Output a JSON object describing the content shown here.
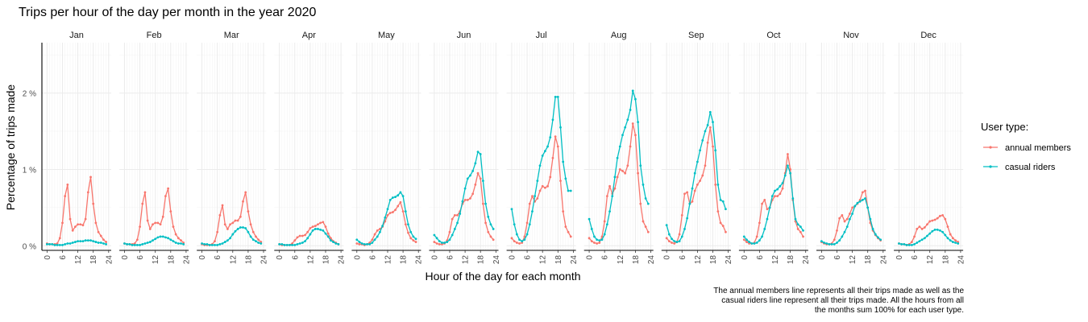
{
  "chart_data": {
    "type": "line",
    "title": "Trips per hour of the day per month in the year 2020",
    "xlabel": "Hour of the day for each month",
    "ylabel": "Percentage of trips made",
    "caption": [
      "The annual members line represents all their trips made as well as the",
      "casual riders line represent all their trips made. All the hours from all",
      "the months sum 100% for each user type."
    ],
    "facets": [
      "Jan",
      "Feb",
      "Mar",
      "Apr",
      "May",
      "Jun",
      "Jul",
      "Aug",
      "Sep",
      "Oct",
      "Nov",
      "Dec"
    ],
    "x": [
      0,
      1,
      2,
      3,
      4,
      5,
      6,
      7,
      8,
      9,
      10,
      11,
      12,
      13,
      14,
      15,
      16,
      17,
      18,
      19,
      20,
      21,
      22,
      23
    ],
    "xlim": [
      -2,
      25
    ],
    "xticks": [
      0,
      6,
      12,
      18,
      24
    ],
    "ylim": [
      -0.06,
      2.66
    ],
    "yticks": [
      0,
      1,
      2
    ],
    "ytick_labels": [
      "0 %",
      "1 %",
      "2 %"
    ],
    "grid": true,
    "legend": {
      "title": "User type:",
      "position": "right",
      "entries": [
        "annual members",
        "casual riders"
      ]
    },
    "series": [
      {
        "name": "annual members",
        "color": "#F8766D",
        "by_month": {
          "Jan": [
            0.03,
            0.02,
            0.02,
            0.02,
            0.03,
            0.1,
            0.3,
            0.65,
            0.8,
            0.35,
            0.2,
            0.25,
            0.28,
            0.28,
            0.27,
            0.35,
            0.7,
            0.9,
            0.55,
            0.3,
            0.18,
            0.13,
            0.08,
            0.05
          ],
          "Feb": [
            0.03,
            0.02,
            0.02,
            0.02,
            0.03,
            0.08,
            0.25,
            0.55,
            0.7,
            0.33,
            0.22,
            0.28,
            0.3,
            0.3,
            0.28,
            0.38,
            0.65,
            0.75,
            0.45,
            0.25,
            0.15,
            0.1,
            0.07,
            0.04
          ],
          "Mar": [
            0.02,
            0.01,
            0.01,
            0.01,
            0.02,
            0.06,
            0.18,
            0.4,
            0.53,
            0.28,
            0.22,
            0.28,
            0.3,
            0.33,
            0.33,
            0.38,
            0.58,
            0.7,
            0.45,
            0.28,
            0.18,
            0.12,
            0.08,
            0.05
          ],
          "Apr": [
            0.02,
            0.01,
            0.01,
            0.01,
            0.01,
            0.03,
            0.07,
            0.11,
            0.13,
            0.13,
            0.14,
            0.18,
            0.23,
            0.25,
            0.26,
            0.28,
            0.3,
            0.31,
            0.25,
            0.16,
            0.1,
            0.06,
            0.04,
            0.02
          ],
          "May": [
            0.03,
            0.02,
            0.02,
            0.01,
            0.02,
            0.04,
            0.08,
            0.15,
            0.2,
            0.22,
            0.25,
            0.32,
            0.4,
            0.43,
            0.44,
            0.47,
            0.52,
            0.57,
            0.45,
            0.28,
            0.17,
            0.1,
            0.07,
            0.05
          ],
          "Jun": [
            0.05,
            0.03,
            0.02,
            0.02,
            0.03,
            0.07,
            0.18,
            0.35,
            0.4,
            0.4,
            0.45,
            0.55,
            0.6,
            0.6,
            0.62,
            0.68,
            0.8,
            0.95,
            0.88,
            0.55,
            0.3,
            0.18,
            0.12,
            0.08
          ],
          "Jul": [
            0.1,
            0.06,
            0.04,
            0.03,
            0.04,
            0.12,
            0.3,
            0.55,
            0.65,
            0.58,
            0.62,
            0.72,
            0.78,
            0.76,
            0.78,
            0.9,
            1.15,
            1.43,
            1.3,
            0.85,
            0.45,
            0.25,
            0.18,
            0.12
          ],
          "Aug": [
            0.1,
            0.06,
            0.04,
            0.03,
            0.04,
            0.12,
            0.32,
            0.65,
            0.78,
            0.68,
            0.75,
            0.9,
            1.0,
            0.98,
            0.95,
            1.05,
            1.3,
            1.6,
            1.45,
            0.95,
            0.55,
            0.32,
            0.25,
            0.18
          ],
          "Sep": [
            0.1,
            0.06,
            0.04,
            0.03,
            0.05,
            0.15,
            0.4,
            0.68,
            0.7,
            0.55,
            0.58,
            0.72,
            0.8,
            0.85,
            0.92,
            1.05,
            1.35,
            1.55,
            1.3,
            0.8,
            0.45,
            0.3,
            0.26,
            0.18
          ],
          "Oct": [
            0.08,
            0.05,
            0.03,
            0.03,
            0.04,
            0.12,
            0.3,
            0.55,
            0.6,
            0.48,
            0.5,
            0.6,
            0.65,
            0.65,
            0.68,
            0.75,
            0.95,
            1.2,
            1.0,
            0.6,
            0.32,
            0.22,
            0.18,
            0.12
          ],
          "Nov": [
            0.05,
            0.03,
            0.02,
            0.02,
            0.03,
            0.08,
            0.2,
            0.36,
            0.4,
            0.32,
            0.35,
            0.42,
            0.5,
            0.52,
            0.55,
            0.6,
            0.7,
            0.72,
            0.5,
            0.3,
            0.2,
            0.14,
            0.1,
            0.07
          ],
          "Dec": [
            0.03,
            0.02,
            0.02,
            0.01,
            0.02,
            0.05,
            0.12,
            0.22,
            0.25,
            0.22,
            0.24,
            0.28,
            0.32,
            0.33,
            0.34,
            0.36,
            0.39,
            0.4,
            0.35,
            0.25,
            0.15,
            0.1,
            0.07,
            0.05
          ]
        }
      },
      {
        "name": "casual riders",
        "color": "#00BFC4",
        "by_month": {
          "Jan": [
            0.02,
            0.02,
            0.02,
            0.01,
            0.01,
            0.01,
            0.01,
            0.02,
            0.03,
            0.03,
            0.04,
            0.05,
            0.06,
            0.06,
            0.06,
            0.07,
            0.07,
            0.07,
            0.06,
            0.05,
            0.04,
            0.04,
            0.03,
            0.02
          ],
          "Feb": [
            0.03,
            0.02,
            0.02,
            0.01,
            0.01,
            0.01,
            0.01,
            0.02,
            0.03,
            0.04,
            0.05,
            0.07,
            0.09,
            0.11,
            0.12,
            0.12,
            0.11,
            0.1,
            0.08,
            0.06,
            0.04,
            0.03,
            0.03,
            0.02
          ],
          "Mar": [
            0.03,
            0.02,
            0.02,
            0.01,
            0.01,
            0.01,
            0.01,
            0.02,
            0.03,
            0.05,
            0.07,
            0.1,
            0.15,
            0.19,
            0.22,
            0.24,
            0.24,
            0.23,
            0.18,
            0.12,
            0.08,
            0.06,
            0.04,
            0.03
          ],
          "Apr": [
            0.02,
            0.02,
            0.01,
            0.01,
            0.01,
            0.01,
            0.01,
            0.02,
            0.03,
            0.04,
            0.06,
            0.1,
            0.15,
            0.2,
            0.22,
            0.22,
            0.21,
            0.2,
            0.16,
            0.12,
            0.07,
            0.05,
            0.03,
            0.02
          ],
          "May": [
            0.08,
            0.05,
            0.03,
            0.02,
            0.02,
            0.02,
            0.04,
            0.08,
            0.12,
            0.18,
            0.26,
            0.37,
            0.48,
            0.6,
            0.63,
            0.64,
            0.66,
            0.7,
            0.65,
            0.45,
            0.28,
            0.18,
            0.12,
            0.09
          ],
          "Jun": [
            0.14,
            0.1,
            0.06,
            0.04,
            0.04,
            0.05,
            0.08,
            0.14,
            0.22,
            0.3,
            0.42,
            0.58,
            0.75,
            0.88,
            0.92,
            0.98,
            1.08,
            1.23,
            1.2,
            0.85,
            0.55,
            0.38,
            0.28,
            0.22
          ],
          "Jul": [
            0.48,
            0.28,
            0.15,
            0.08,
            0.06,
            0.08,
            0.15,
            0.28,
            0.45,
            0.65,
            0.85,
            1.05,
            1.18,
            1.24,
            1.3,
            1.42,
            1.65,
            1.95,
            1.95,
            1.55,
            1.1,
            0.88,
            0.72,
            0.72
          ],
          "Aug": [
            0.35,
            0.22,
            0.12,
            0.08,
            0.07,
            0.08,
            0.15,
            0.28,
            0.45,
            0.65,
            0.9,
            1.15,
            1.3,
            1.45,
            1.55,
            1.65,
            1.78,
            2.03,
            1.92,
            1.62,
            1.05,
            0.8,
            0.62,
            0.55
          ],
          "Sep": [
            0.27,
            0.15,
            0.09,
            0.06,
            0.05,
            0.06,
            0.12,
            0.22,
            0.36,
            0.55,
            0.75,
            0.95,
            1.1,
            1.25,
            1.38,
            1.5,
            1.58,
            1.75,
            1.62,
            1.25,
            0.8,
            0.6,
            0.58,
            0.48
          ],
          "Oct": [
            0.12,
            0.08,
            0.05,
            0.03,
            0.03,
            0.04,
            0.07,
            0.12,
            0.22,
            0.35,
            0.5,
            0.65,
            0.72,
            0.74,
            0.78,
            0.82,
            0.92,
            1.05,
            0.95,
            0.62,
            0.35,
            0.28,
            0.25,
            0.2
          ],
          "Nov": [
            0.06,
            0.04,
            0.03,
            0.02,
            0.02,
            0.02,
            0.04,
            0.07,
            0.12,
            0.18,
            0.25,
            0.35,
            0.42,
            0.52,
            0.56,
            0.58,
            0.6,
            0.62,
            0.5,
            0.35,
            0.22,
            0.15,
            0.11,
            0.08
          ],
          "Dec": [
            0.03,
            0.02,
            0.02,
            0.01,
            0.01,
            0.01,
            0.02,
            0.04,
            0.06,
            0.08,
            0.1,
            0.13,
            0.16,
            0.19,
            0.21,
            0.21,
            0.2,
            0.18,
            0.14,
            0.1,
            0.07,
            0.05,
            0.04,
            0.03
          ]
        }
      }
    ]
  }
}
